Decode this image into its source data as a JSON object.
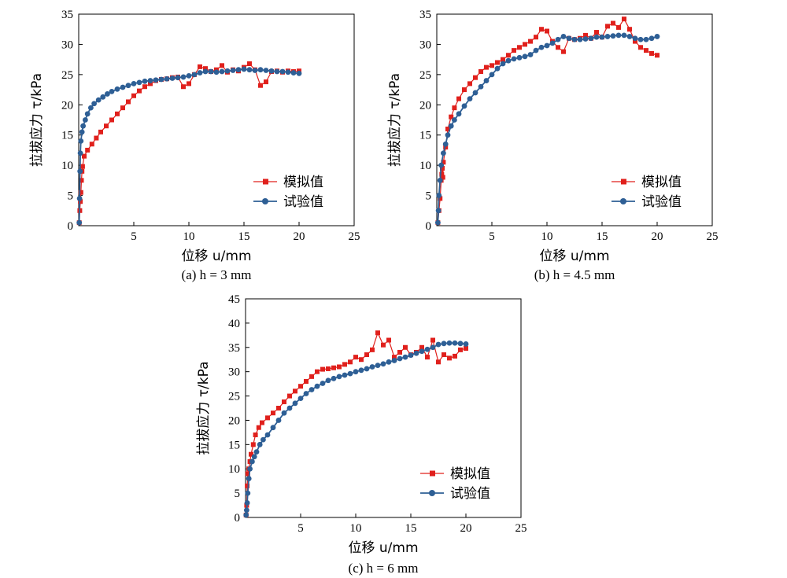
{
  "colors": {
    "simulated": "#e0201c",
    "experimental": "#2e5f95"
  },
  "chart_data": [
    {
      "type": "line",
      "caption": "(a) h = 3 mm",
      "xlabel": "位移 u/mm",
      "ylabel": "拉拔应力 τ/kPa",
      "xlim": [
        0,
        25
      ],
      "ylim": [
        0,
        35
      ],
      "xticks": [
        "5",
        "10",
        "15",
        "20",
        "25"
      ],
      "yticks": [
        "0",
        "5",
        "10",
        "15",
        "20",
        "25",
        "30",
        "35"
      ],
      "legend_position": "bottom-right",
      "series": [
        {
          "name": "模拟值",
          "marker": "square",
          "x": [
            0.05,
            0.1,
            0.15,
            0.2,
            0.25,
            0.3,
            0.35,
            0.5,
            0.8,
            1.2,
            1.6,
            2.0,
            2.5,
            3.0,
            3.5,
            4.0,
            4.5,
            5.0,
            5.5,
            6.0,
            6.5,
            7.0,
            7.5,
            8.0,
            8.5,
            9.0,
            9.5,
            10.0,
            10.5,
            11.0,
            11.5,
            12.0,
            12.5,
            13.0,
            13.5,
            14.0,
            14.5,
            15.0,
            15.5,
            16.0,
            16.5,
            17.0,
            17.5,
            18.0,
            18.5,
            19.0,
            19.5,
            20.0
          ],
          "y": [
            0.5,
            2.5,
            4.0,
            5.5,
            7.5,
            9.0,
            9.8,
            11.5,
            12.5,
            13.5,
            14.5,
            15.5,
            16.5,
            17.5,
            18.5,
            19.5,
            20.5,
            21.5,
            22.3,
            23.0,
            23.5,
            24.0,
            24.2,
            24.3,
            24.5,
            24.6,
            23.0,
            23.5,
            25.0,
            26.3,
            26.0,
            25.5,
            25.8,
            26.5,
            25.4,
            25.8,
            25.6,
            26.2,
            26.8,
            25.8,
            23.2,
            23.8,
            25.5,
            25.6,
            25.4,
            25.6,
            25.5,
            25.6
          ]
        },
        {
          "name": "试验值",
          "marker": "circle",
          "x": [
            0.05,
            0.08,
            0.12,
            0.15,
            0.2,
            0.3,
            0.4,
            0.6,
            0.8,
            1.1,
            1.4,
            1.8,
            2.2,
            2.6,
            3.0,
            3.5,
            4.0,
            4.5,
            5.0,
            5.5,
            6.0,
            6.5,
            7.0,
            7.5,
            8.0,
            8.5,
            9.0,
            9.5,
            10.0,
            10.5,
            11.0,
            11.5,
            12.0,
            12.5,
            13.0,
            13.5,
            14.0,
            14.5,
            15.0,
            15.5,
            16.0,
            16.5,
            17.0,
            17.5,
            18.0,
            18.5,
            19.0,
            19.5,
            20.0
          ],
          "y": [
            0.5,
            4.5,
            9.0,
            12.0,
            14.0,
            15.5,
            16.5,
            17.5,
            18.5,
            19.5,
            20.2,
            20.8,
            21.3,
            21.8,
            22.2,
            22.6,
            22.9,
            23.2,
            23.5,
            23.7,
            23.9,
            24.0,
            24.1,
            24.2,
            24.3,
            24.4,
            24.5,
            24.6,
            24.8,
            25.0,
            25.3,
            25.5,
            25.5,
            25.4,
            25.5,
            25.6,
            25.7,
            25.8,
            25.9,
            25.8,
            25.7,
            25.8,
            25.7,
            25.6,
            25.5,
            25.5,
            25.4,
            25.3,
            25.2
          ]
        }
      ]
    },
    {
      "type": "line",
      "caption": "(b) h = 4.5 mm",
      "xlabel": "位移 u/mm",
      "ylabel": "拉拔应力 τ/kPa",
      "xlim": [
        0,
        25
      ],
      "ylim": [
        0,
        35
      ],
      "xticks": [
        "5",
        "10",
        "15",
        "20",
        "25"
      ],
      "yticks": [
        "0",
        "5",
        "10",
        "15",
        "20",
        "25",
        "30",
        "35"
      ],
      "legend_position": "bottom-right",
      "series": [
        {
          "name": "模拟值",
          "marker": "square",
          "x": [
            0.1,
            0.2,
            0.3,
            0.4,
            0.45,
            0.5,
            0.55,
            0.6,
            0.8,
            1.0,
            1.3,
            1.6,
            2.0,
            2.5,
            3.0,
            3.5,
            4.0,
            4.5,
            5.0,
            5.5,
            6.0,
            6.5,
            7.0,
            7.5,
            8.0,
            8.5,
            9.0,
            9.5,
            10.0,
            10.5,
            11.0,
            11.5,
            12.0,
            12.5,
            13.0,
            13.5,
            14.0,
            14.5,
            15.0,
            15.5,
            16.0,
            16.5,
            17.0,
            17.5,
            18.0,
            18.5,
            19.0,
            19.5,
            20.0
          ],
          "y": [
            0.5,
            2.5,
            4.5,
            7.5,
            8.5,
            9.5,
            8.0,
            10.5,
            13.0,
            16.0,
            18.0,
            19.5,
            21.0,
            22.5,
            23.5,
            24.5,
            25.5,
            26.2,
            26.5,
            27.0,
            27.5,
            28.2,
            29.0,
            29.5,
            30.0,
            30.5,
            31.2,
            32.5,
            32.2,
            30.5,
            29.5,
            28.8,
            31.0,
            30.8,
            31.0,
            31.5,
            31.0,
            32.0,
            31.2,
            33.0,
            33.5,
            32.8,
            34.2,
            32.5,
            30.5,
            29.5,
            29.0,
            28.5,
            28.2
          ]
        },
        {
          "name": "试验值",
          "marker": "circle",
          "x": [
            0.1,
            0.15,
            0.2,
            0.3,
            0.4,
            0.6,
            0.8,
            1.0,
            1.3,
            1.6,
            2.0,
            2.5,
            3.0,
            3.5,
            4.0,
            4.5,
            5.0,
            5.5,
            6.0,
            6.5,
            7.0,
            7.5,
            8.0,
            8.5,
            9.0,
            9.5,
            10.0,
            10.5,
            11.0,
            11.5,
            12.0,
            12.5,
            13.0,
            13.5,
            14.0,
            14.5,
            15.0,
            15.5,
            16.0,
            16.5,
            17.0,
            17.5,
            18.0,
            18.5,
            19.0,
            19.5,
            20.0
          ],
          "y": [
            0.5,
            2.5,
            5.0,
            7.5,
            10.0,
            12.0,
            13.5,
            15.0,
            16.5,
            17.5,
            18.5,
            19.8,
            21.0,
            22.0,
            23.0,
            24.0,
            25.0,
            26.0,
            26.8,
            27.3,
            27.6,
            27.8,
            28.0,
            28.3,
            29.0,
            29.5,
            29.8,
            30.2,
            30.8,
            31.3,
            31.0,
            30.8,
            30.8,
            30.9,
            31.0,
            31.2,
            31.2,
            31.3,
            31.4,
            31.5,
            31.5,
            31.3,
            31.0,
            30.8,
            30.8,
            31.0,
            31.3
          ]
        }
      ]
    },
    {
      "type": "line",
      "caption": "(c) h = 6 mm",
      "xlabel": "位移 u/mm",
      "ylabel": "拉拔应力 τ/kPa",
      "xlim": [
        0,
        25
      ],
      "ylim": [
        0,
        45
      ],
      "xticks": [
        "5",
        "10",
        "15",
        "20",
        "25"
      ],
      "yticks": [
        "0",
        "5",
        "10",
        "15",
        "20",
        "25",
        "30",
        "35",
        "40",
        "45"
      ],
      "legend_position": "bottom-right",
      "series": [
        {
          "name": "模拟值",
          "marker": "square",
          "x": [
            0.05,
            0.1,
            0.15,
            0.2,
            0.3,
            0.4,
            0.5,
            0.7,
            0.9,
            1.2,
            1.5,
            2.0,
            2.5,
            3.0,
            3.5,
            4.0,
            4.5,
            5.0,
            5.5,
            6.0,
            6.5,
            7.0,
            7.5,
            8.0,
            8.5,
            9.0,
            9.5,
            10.0,
            10.5,
            11.0,
            11.5,
            12.0,
            12.5,
            13.0,
            13.5,
            14.0,
            14.5,
            15.0,
            15.5,
            16.0,
            16.5,
            17.0,
            17.5,
            18.0,
            18.5,
            19.0,
            19.5,
            20.0
          ],
          "y": [
            0.5,
            2.5,
            6.5,
            9.0,
            10.0,
            11.5,
            13.0,
            15.0,
            17.0,
            18.5,
            19.5,
            20.5,
            21.5,
            22.5,
            23.8,
            25.0,
            26.0,
            27.0,
            28.0,
            29.0,
            30.0,
            30.5,
            30.6,
            30.8,
            31.0,
            31.5,
            32.0,
            33.0,
            32.5,
            33.5,
            34.5,
            38.0,
            35.5,
            36.5,
            33.0,
            34.0,
            35.0,
            33.5,
            34.0,
            35.0,
            33.0,
            36.5,
            32.0,
            33.5,
            32.8,
            33.2,
            34.5,
            34.8
          ]
        },
        {
          "name": "试验值",
          "marker": "circle",
          "x": [
            0.05,
            0.1,
            0.15,
            0.2,
            0.3,
            0.4,
            0.6,
            0.8,
            1.0,
            1.3,
            1.6,
            2.0,
            2.5,
            3.0,
            3.5,
            4.0,
            4.5,
            5.0,
            5.5,
            6.0,
            6.5,
            7.0,
            7.5,
            8.0,
            8.5,
            9.0,
            9.5,
            10.0,
            10.5,
            11.0,
            11.5,
            12.0,
            12.5,
            13.0,
            13.5,
            14.0,
            14.5,
            15.0,
            15.5,
            16.0,
            16.5,
            17.0,
            17.5,
            18.0,
            18.5,
            19.0,
            19.5,
            20.0
          ],
          "y": [
            0.5,
            1.5,
            3.0,
            5.0,
            8.0,
            10.0,
            11.5,
            12.5,
            13.5,
            15.0,
            16.0,
            17.0,
            18.5,
            20.0,
            21.5,
            22.5,
            23.5,
            24.5,
            25.5,
            26.3,
            27.0,
            27.6,
            28.2,
            28.6,
            29.0,
            29.3,
            29.6,
            30.0,
            30.3,
            30.6,
            31.0,
            31.3,
            31.6,
            32.0,
            32.3,
            32.7,
            33.0,
            33.4,
            33.8,
            34.2,
            34.6,
            35.0,
            35.6,
            35.8,
            35.9,
            35.9,
            35.8,
            35.7
          ]
        }
      ]
    }
  ]
}
